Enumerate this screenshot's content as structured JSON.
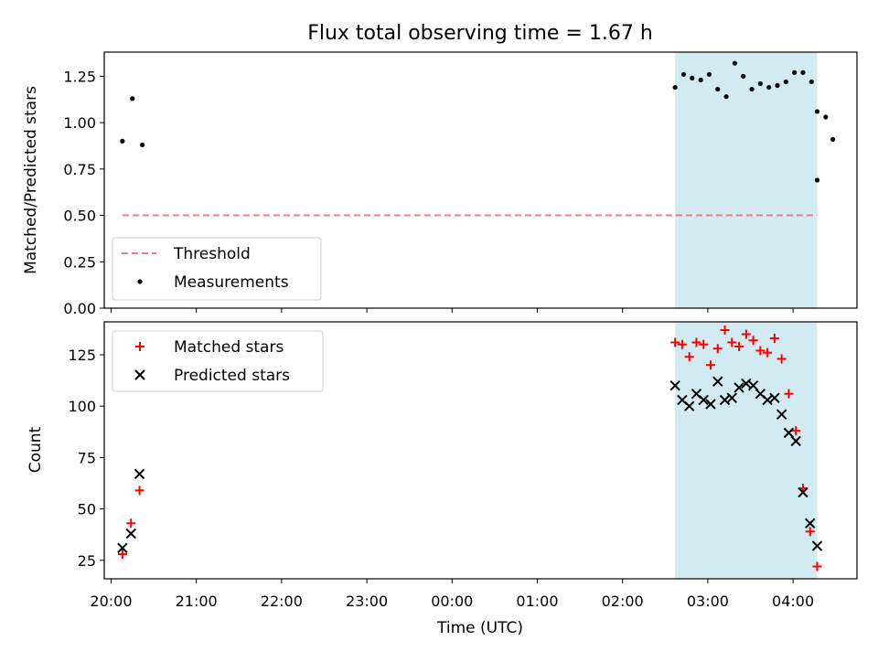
{
  "chart_data": [
    {
      "type": "scatter",
      "title": "Flux total observing time = 1.67 h",
      "xlabel": "",
      "ylabel": "Matched/Predicted stars",
      "ylim": [
        0,
        1.38
      ],
      "yticks": [
        "0.00",
        "0.25",
        "0.50",
        "0.75",
        "1.00",
        "1.25"
      ],
      "shaded_region": {
        "x_start": "02:37",
        "x_end": "04:17",
        "color": "#add8e6"
      },
      "threshold": {
        "name": "Threshold",
        "value": 0.5,
        "x_start": "20:08",
        "x_end": "04:17",
        "color": "#f08080"
      },
      "legend": {
        "placement": "lower-left",
        "entries": [
          "Threshold",
          "Measurements"
        ]
      },
      "series": [
        {
          "name": "Measurements",
          "color": "#000000",
          "x": [
            "20:08",
            "20:15",
            "20:22",
            "02:37",
            "02:43",
            "02:49",
            "02:55",
            "03:01",
            "03:07",
            "03:13",
            "03:19",
            "03:25",
            "03:31",
            "03:37",
            "03:43",
            "03:49",
            "03:55",
            "04:01",
            "04:07",
            "04:13",
            "04:17",
            "04:23",
            "04:28"
          ],
          "y": [
            0.9,
            1.13,
            0.88,
            1.19,
            1.26,
            1.24,
            1.23,
            1.26,
            1.18,
            1.14,
            1.32,
            1.25,
            1.18,
            1.21,
            1.19,
            1.2,
            1.22,
            1.27,
            1.27,
            1.22,
            1.06,
            1.03,
            0.91
          ]
        },
        {
          "name": "",
          "color": "#000000",
          "x": [
            "04:17"
          ],
          "y": [
            0.69
          ]
        }
      ]
    },
    {
      "type": "scatter",
      "title": "",
      "xlabel": "Time (UTC)",
      "ylabel": "Count",
      "ylim": [
        16,
        141
      ],
      "yticks": [
        "25",
        "50",
        "75",
        "100",
        "125"
      ],
      "xticks": [
        "20:00",
        "21:00",
        "22:00",
        "23:00",
        "00:00",
        "01:00",
        "02:00",
        "03:00",
        "04:00"
      ],
      "shaded_region": {
        "x_start": "02:37",
        "x_end": "04:17",
        "color": "#add8e6"
      },
      "legend": {
        "placement": "top-left",
        "entries": [
          "Matched stars",
          "Predicted stars"
        ]
      },
      "series": [
        {
          "name": "Matched stars",
          "marker": "+",
          "color": "#ff0000",
          "x": [
            "20:08",
            "20:14",
            "20:20",
            "02:37",
            "02:42",
            "02:47",
            "02:52",
            "02:57",
            "03:02",
            "03:07",
            "03:12",
            "03:17",
            "03:22",
            "03:27",
            "03:32",
            "03:37",
            "03:42",
            "03:47",
            "03:52",
            "03:57",
            "04:02",
            "04:07",
            "04:12",
            "04:17"
          ],
          "y": [
            28,
            43,
            59,
            131,
            130,
            124,
            131,
            130,
            120,
            128,
            137,
            131,
            129,
            135,
            132,
            127,
            126,
            133,
            123,
            106,
            88,
            60,
            39,
            22
          ]
        },
        {
          "name": "Predicted stars",
          "marker": "x",
          "color": "#000000",
          "x": [
            "20:08",
            "20:14",
            "20:20",
            "02:37",
            "02:42",
            "02:47",
            "02:52",
            "02:57",
            "03:02",
            "03:07",
            "03:12",
            "03:17",
            "03:22",
            "03:27",
            "03:32",
            "03:37",
            "03:42",
            "03:47",
            "03:52",
            "03:57",
            "04:02",
            "04:07",
            "04:12",
            "04:17"
          ],
          "y": [
            31,
            38,
            67,
            110,
            103,
            100,
            106,
            103,
            101,
            112,
            103,
            104,
            109,
            111,
            110,
            106,
            103,
            104,
            96,
            87,
            83,
            58,
            43,
            32
          ]
        }
      ]
    }
  ]
}
